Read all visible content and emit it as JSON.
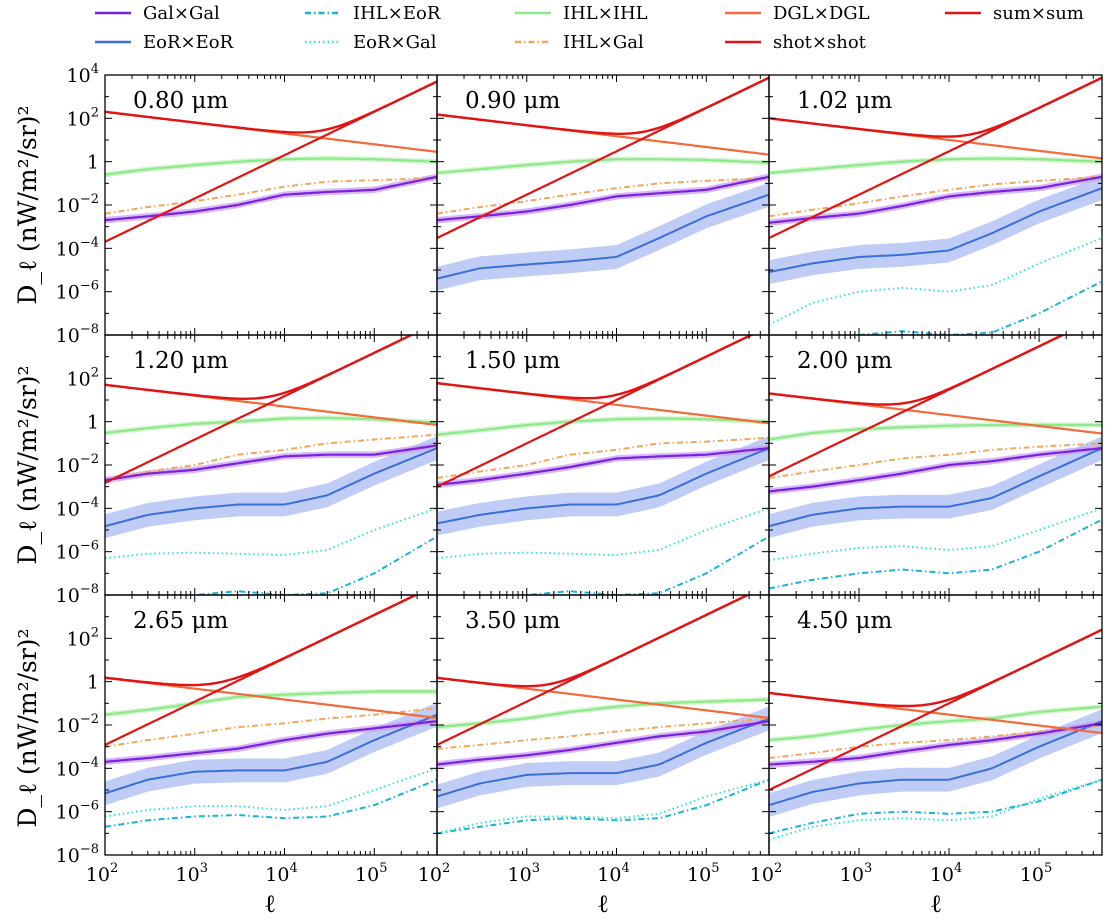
{
  "chart_data": {
    "type": "line",
    "xlabel": "ℓ",
    "ylabel": "D_ℓ (nW/m²/sr)²",
    "xscale": "log",
    "yscale": "log",
    "xlim": [
      100,
      500000
    ],
    "ylim": [
      1e-08,
      10000
    ],
    "x_ticks": [
      {
        "label": "10",
        "exp": "2",
        "value": 100
      },
      {
        "label": "10",
        "exp": "3",
        "value": 1000
      },
      {
        "label": "10",
        "exp": "4",
        "value": 10000
      },
      {
        "label": "10",
        "exp": "5",
        "value": 100000
      }
    ],
    "y_ticks": [
      {
        "label": "10",
        "exp": "−8",
        "value": 1e-08
      },
      {
        "label": "10",
        "exp": "−6",
        "value": 1e-06
      },
      {
        "label": "10",
        "exp": "−4",
        "value": 0.0001
      },
      {
        "label": "10",
        "exp": "−2",
        "value": 0.01
      },
      {
        "label": "1",
        "exp": "",
        "value": 1
      },
      {
        "label": "10",
        "exp": "2",
        "value": 100
      },
      {
        "label": "10",
        "exp": "4",
        "value": 10000
      }
    ],
    "grid": false,
    "legend_placement": "top (above panels), 5 columns",
    "legend": [
      {
        "key": "galgal",
        "label": "Gal×Gal",
        "color": "#7b1fe0",
        "style": "solid"
      },
      {
        "key": "eoreor",
        "label": "EoR×EoR",
        "color": "#3a6fd8",
        "style": "solid"
      },
      {
        "key": "ihleor",
        "label": "IHL×EoR",
        "color": "#19b3d6",
        "style": "dashdot"
      },
      {
        "key": "eorgal",
        "label": "EoR×Gal",
        "color": "#33e3c8",
        "style": "dotted"
      },
      {
        "key": "ihlihl",
        "label": "IHL×IHL",
        "color": "#8fe88a",
        "style": "solid"
      },
      {
        "key": "ihlgal",
        "label": "IHL×Gal",
        "color": "#f2a65a",
        "style": "dashdot"
      },
      {
        "key": "dgldgl",
        "label": "DGL×DGL",
        "color": "#f26b3a",
        "style": "solid"
      },
      {
        "key": "shotshot",
        "label": "shot×shot",
        "color": "#e01414",
        "style": "solid"
      },
      {
        "key": "sumsum",
        "label": "sum×sum",
        "color": "#e01414",
        "style": "solid"
      }
    ],
    "ell": [
      100,
      300,
      1000,
      3000,
      10000,
      30000,
      100000,
      500000
    ],
    "panels": [
      {
        "label": "0.80 μm",
        "shot_at_100": 0.0002,
        "dgl_at_100": 200,
        "dgl_slope": -0.5,
        "series": {
          "ihlihl": [
            0.25,
            0.45,
            0.7,
            1.0,
            1.3,
            1.4,
            1.3,
            1.0
          ],
          "ihlgal": [
            0.004,
            0.008,
            0.015,
            0.03,
            0.07,
            0.12,
            0.14,
            0.18
          ],
          "galgal": [
            0.002,
            0.003,
            0.005,
            0.01,
            0.03,
            0.04,
            0.05,
            0.2
          ]
        }
      },
      {
        "label": "0.90 μm",
        "shot_at_100": 0.0003,
        "dgl_at_100": 150,
        "dgl_slope": -0.5,
        "series": {
          "ihlihl": [
            0.3,
            0.45,
            0.7,
            1.0,
            1.3,
            1.3,
            1.2,
            0.9
          ],
          "ihlgal": [
            0.004,
            0.008,
            0.015,
            0.03,
            0.06,
            0.1,
            0.13,
            0.18
          ],
          "galgal": [
            0.002,
            0.003,
            0.005,
            0.01,
            0.025,
            0.035,
            0.05,
            0.2
          ],
          "eoreor": [
            4e-06,
            1.2e-05,
            1.8e-05,
            2.5e-05,
            4e-05,
            0.0003,
            0.003,
            0.03
          ]
        }
      },
      {
        "label": "1.02 μm",
        "shot_at_100": 0.0003,
        "dgl_at_100": 100,
        "dgl_slope": -0.5,
        "series": {
          "ihlihl": [
            0.3,
            0.45,
            0.7,
            1.0,
            1.3,
            1.4,
            1.3,
            1.0
          ],
          "ihlgal": [
            0.003,
            0.006,
            0.012,
            0.025,
            0.05,
            0.09,
            0.13,
            0.2
          ],
          "galgal": [
            0.0015,
            0.0025,
            0.004,
            0.009,
            0.025,
            0.04,
            0.06,
            0.2
          ],
          "eoreor": [
            8e-06,
            2e-05,
            4e-05,
            5e-05,
            8e-05,
            0.0005,
            0.005,
            0.06
          ],
          "eorgal": [
            3e-08,
            3e-07,
            1e-06,
            1.5e-06,
            1e-06,
            2e-06,
            2e-05,
            0.0003
          ],
          "ihleor": [
            1e-09,
            1e-09,
            1e-08,
            1.5e-08,
            1e-08,
            1.3e-08,
            1e-07,
            3e-06
          ]
        }
      },
      {
        "label": "1.20 μm",
        "shot_at_100": 0.0015,
        "dgl_at_100": 50,
        "dgl_slope": -0.5,
        "series": {
          "ihlihl": [
            0.3,
            0.5,
            0.8,
            1.0,
            1.4,
            1.5,
            1.3,
            0.9
          ],
          "ihlgal": [
            0.002,
            0.005,
            0.01,
            0.03,
            0.05,
            0.1,
            0.15,
            0.25
          ],
          "galgal": [
            0.002,
            0.004,
            0.006,
            0.012,
            0.025,
            0.03,
            0.03,
            0.08
          ],
          "eoreor": [
            1.5e-05,
            5e-05,
            0.0001,
            0.00015,
            0.00015,
            0.0004,
            0.004,
            0.06
          ],
          "eorgal": [
            5e-07,
            8e-07,
            9e-07,
            8e-07,
            7e-07,
            1.2e-06,
            1e-05,
            0.0001
          ],
          "ihleor": [
            3e-09,
            5e-09,
            1e-08,
            1.5e-08,
            1e-08,
            1.2e-08,
            1e-07,
            5e-06
          ]
        }
      },
      {
        "label": "1.50 μm",
        "shot_at_100": 0.001,
        "dgl_at_100": 60,
        "dgl_slope": -0.5,
        "series": {
          "ihlihl": [
            0.25,
            0.4,
            0.7,
            1.0,
            1.3,
            1.4,
            1.3,
            1.0
          ],
          "ihlgal": [
            0.0025,
            0.005,
            0.01,
            0.03,
            0.05,
            0.1,
            0.12,
            0.18
          ],
          "galgal": [
            0.0012,
            0.002,
            0.004,
            0.008,
            0.02,
            0.025,
            0.03,
            0.06
          ],
          "eoreor": [
            2e-05,
            5e-05,
            0.0001,
            0.00015,
            0.00015,
            0.0004,
            0.004,
            0.06
          ],
          "eorgal": [
            5e-07,
            8e-07,
            9e-07,
            8e-07,
            7e-07,
            1.2e-06,
            1e-05,
            0.0001
          ],
          "ihleor": [
            3e-09,
            5e-09,
            1e-08,
            1.5e-08,
            1e-08,
            1.2e-08,
            1e-07,
            5e-06
          ]
        }
      },
      {
        "label": "2.00 μm",
        "shot_at_100": 0.003,
        "dgl_at_100": 20,
        "dgl_slope": -0.5,
        "series": {
          "ihlihl": [
            0.15,
            0.3,
            0.45,
            0.55,
            0.65,
            0.7,
            0.7,
            0.7
          ],
          "ihlgal": [
            0.0025,
            0.005,
            0.01,
            0.02,
            0.03,
            0.05,
            0.07,
            0.1
          ],
          "galgal": [
            0.0006,
            0.001,
            0.002,
            0.004,
            0.01,
            0.015,
            0.03,
            0.06
          ],
          "eoreor": [
            1.5e-05,
            5e-05,
            0.0001,
            0.00012,
            0.00012,
            0.0003,
            0.003,
            0.06
          ],
          "eorgal": [
            4e-07,
            8e-07,
            1.5e-06,
            1.8e-06,
            1.2e-06,
            1.8e-06,
            1e-05,
            0.0001
          ],
          "ihleor": [
            2e-08,
            5e-08,
            1e-07,
            1.5e-07,
            1e-07,
            1.5e-07,
            1e-06,
            3e-05
          ]
        }
      },
      {
        "label": "2.65 μm",
        "shot_at_100": 0.0012,
        "dgl_at_100": 1.5,
        "dgl_slope": -0.5,
        "series": {
          "ihlihl": [
            0.03,
            0.05,
            0.1,
            0.2,
            0.25,
            0.3,
            0.35,
            0.35
          ],
          "ihlgal": [
            0.001,
            0.002,
            0.004,
            0.008,
            0.012,
            0.02,
            0.03,
            0.06
          ],
          "galgal": [
            0.0002,
            0.0003,
            0.0005,
            0.0008,
            0.002,
            0.004,
            0.007,
            0.015
          ],
          "eoreor": [
            7e-06,
            3e-05,
            7e-05,
            8e-05,
            8e-05,
            0.0002,
            0.002,
            0.03
          ],
          "eorgal": [
            6e-07,
            1.2e-06,
            1.8e-06,
            1.8e-06,
            1.2e-06,
            1.8e-06,
            1e-05,
            0.0001
          ],
          "ihleor": [
            2e-07,
            4e-07,
            6e-07,
            7e-07,
            5e-07,
            6e-07,
            2e-06,
            3e-05
          ]
        }
      },
      {
        "label": "3.50 μm",
        "shot_at_100": 0.0012,
        "dgl_at_100": 1.5,
        "dgl_slope": -0.5,
        "series": {
          "ihlihl": [
            0.008,
            0.012,
            0.02,
            0.04,
            0.07,
            0.1,
            0.12,
            0.15
          ],
          "ihlgal": [
            0.0008,
            0.0012,
            0.002,
            0.003,
            0.005,
            0.008,
            0.012,
            0.02
          ],
          "galgal": [
            0.00015,
            0.00025,
            0.0004,
            0.0007,
            0.0015,
            0.003,
            0.005,
            0.015
          ],
          "eoreor": [
            5e-06,
            2e-05,
            5e-05,
            6e-05,
            6e-05,
            0.00015,
            0.0015,
            0.02
          ],
          "eorgal": [
            1e-07,
            3e-07,
            6e-07,
            6e-07,
            5e-07,
            8e-07,
            5e-06,
            3e-05
          ],
          "ihleor": [
            1e-07,
            2e-07,
            4e-07,
            5e-07,
            4e-07,
            5e-07,
            2e-06,
            3e-05
          ]
        }
      },
      {
        "label": "4.50 μm",
        "shot_at_100": 1e-05,
        "dgl_at_100": 0.3,
        "dgl_slope": -0.5,
        "series": {
          "ihlihl": [
            0.002,
            0.003,
            0.006,
            0.01,
            0.015,
            0.02,
            0.04,
            0.07
          ],
          "ihlgal": [
            0.0003,
            0.0005,
            0.001,
            0.0015,
            0.002,
            0.003,
            0.005,
            0.01
          ],
          "galgal": [
            0.00015,
            0.0002,
            0.0003,
            0.0006,
            0.0012,
            0.002,
            0.004,
            0.012
          ],
          "eoreor": [
            2e-06,
            8e-06,
            2e-05,
            3e-05,
            3e-05,
            0.0001,
            0.001,
            0.015
          ],
          "eorgal": [
            5e-08,
            2e-07,
            4e-07,
            5e-07,
            4e-07,
            6e-07,
            4e-06,
            3e-05
          ],
          "ihleor": [
            1e-07,
            3e-07,
            8e-07,
            1e-06,
            8e-07,
            1e-06,
            3e-06,
            3e-05
          ]
        }
      }
    ]
  }
}
